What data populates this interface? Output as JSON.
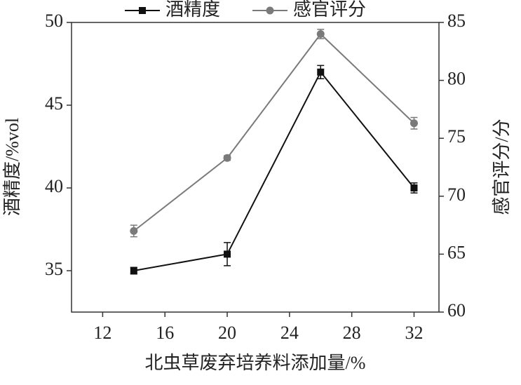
{
  "chart_data": {
    "type": "line",
    "x": [
      14,
      20,
      26,
      32
    ],
    "xlabel": "北虫草废弃培养料添加量/%",
    "ylabel": "酒精度/%vol",
    "y2label": "感官评分/分",
    "xlim": [
      10,
      33.6
    ],
    "xticks": [
      12,
      16,
      20,
      24,
      28,
      32
    ],
    "ylim": [
      32.5,
      50
    ],
    "yticks": [
      35,
      40,
      45,
      50
    ],
    "y2lim": [
      60,
      85
    ],
    "y2ticks": [
      60,
      65,
      70,
      75,
      80,
      85
    ],
    "series": [
      {
        "name": "酒精度",
        "color": "#111111",
        "marker": "square",
        "values": [
          35,
          36,
          47,
          40
        ],
        "errors": [
          0.2,
          0.7,
          0.4,
          0.3
        ]
      },
      {
        "name": "感官评分",
        "color": "#7a7a7a",
        "marker": "circle",
        "axis": "y2",
        "values": [
          67,
          73.3,
          84,
          76.3
        ],
        "errors": [
          0.5,
          0.2,
          0.4,
          0.5
        ]
      }
    ]
  }
}
